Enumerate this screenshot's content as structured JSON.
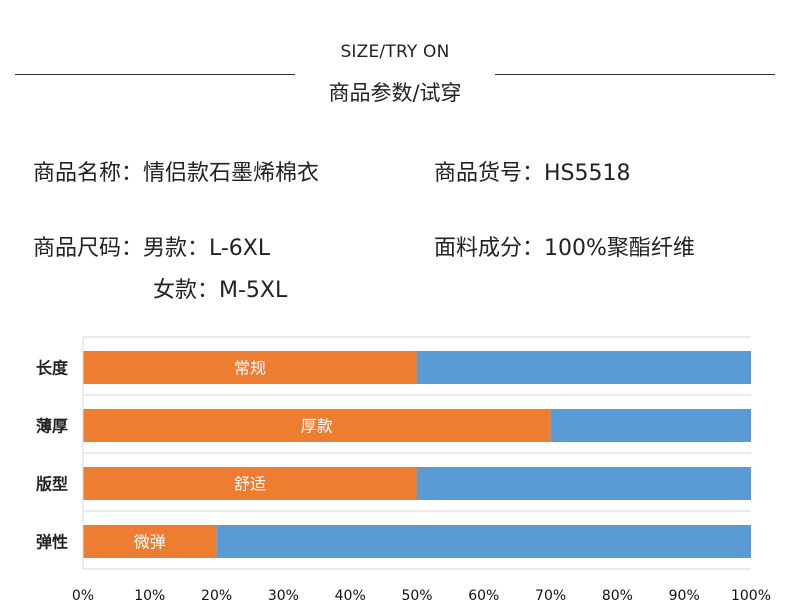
{
  "header": {
    "title_en": "SIZE/TRY ON",
    "title_cn": "商品参数/试穿"
  },
  "info": {
    "name": "商品名称：情侣款石墨烯棉衣",
    "item_no": "商品货号：HS5518",
    "size_men": "商品尺码：男款：L-6XL",
    "size_women": "女款：M-5XL",
    "fabric": "面料成分：100%聚酯纤维"
  },
  "colors": {
    "primary": "#ed7d31",
    "secondary": "#5b9bd5",
    "grid": "#d9d9d9"
  },
  "chart_data": {
    "type": "bar",
    "orientation": "horizontal",
    "stacked": true,
    "categories": [
      "长度",
      "薄厚",
      "版型",
      "弹性"
    ],
    "series": [
      {
        "values": [
          50,
          70,
          50,
          20
        ],
        "labels": [
          "常规",
          "厚款",
          "舒适",
          "微弹"
        ]
      },
      {
        "values": [
          50,
          30,
          50,
          80
        ]
      }
    ],
    "xlim": [
      0,
      100
    ],
    "xticks": [
      "0%",
      "10%",
      "20%",
      "30%",
      "40%",
      "50%",
      "60%",
      "70%",
      "80%",
      "90%",
      "100%"
    ],
    "grid": true
  }
}
